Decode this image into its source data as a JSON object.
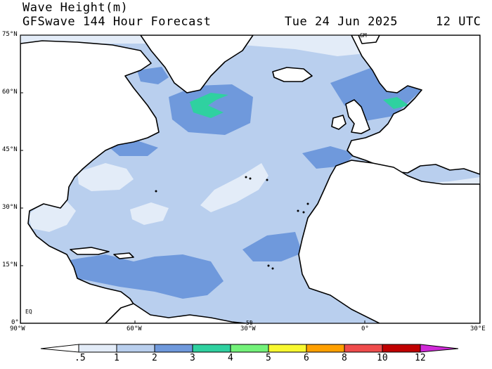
{
  "header": {
    "title": "Wave Height(m)",
    "model_line": "GFSwave 144 Hour Forecast",
    "date": "Tue 24 Jun 2025",
    "time": "12 UTC"
  },
  "map": {
    "region": "North Atlantic",
    "lon_range": [
      -90,
      30
    ],
    "lat_range": [
      0,
      75
    ],
    "lat_labels": [
      "75°N",
      "60°N",
      "45°N",
      "30°N",
      "15°N",
      "0°"
    ],
    "lon_labels": [
      "90°W",
      "60°W",
      "30°W",
      "0°",
      "30°E"
    ],
    "inner_labels": [
      "GM",
      "EQ",
      "50"
    ]
  },
  "colorbar": {
    "labels": [
      ".5",
      "1",
      "2",
      "3",
      "4",
      "5",
      "6",
      "8",
      "10",
      "12"
    ],
    "colors": [
      "#ffffff",
      "#e3ecf8",
      "#b9cfee",
      "#6f99dc",
      "#2fd1a0",
      "#73f27a",
      "#f8f830",
      "#ffa000",
      "#ef4c4c",
      "#c00000",
      "#d02ad8"
    ]
  },
  "colors": {
    "ocean_low": "#b9cfee",
    "ocean_calm": "#e3ecf8",
    "ocean_mid": "#6f99dc",
    "ocean_high": "#2fd1a0",
    "ocean_peak": "#73f27a",
    "land": "#ffffff",
    "coast": "#000000"
  }
}
